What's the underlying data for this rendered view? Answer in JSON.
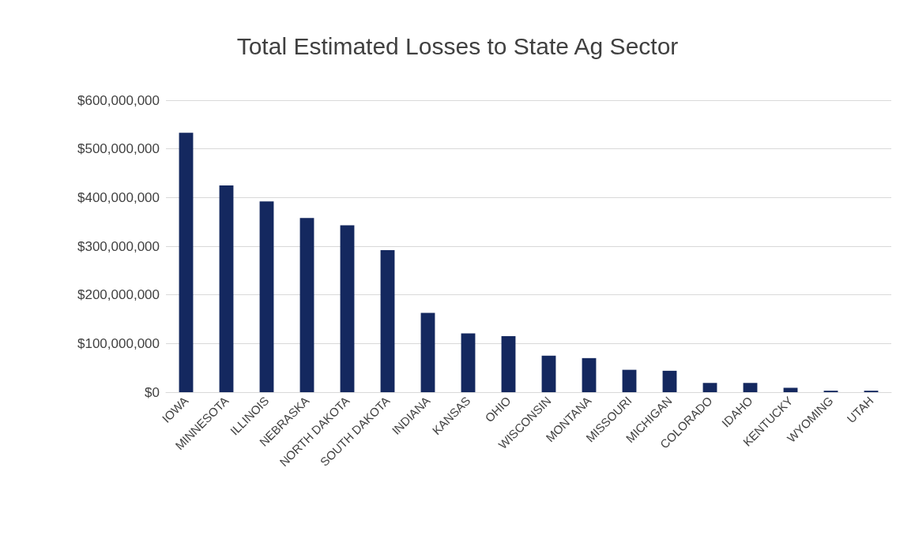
{
  "chart_data": {
    "type": "bar",
    "title": "Total Estimated Losses to State Ag Sector",
    "categories": [
      "IOWA",
      "MINNESOTA",
      "ILLINOIS",
      "NEBRASKA",
      "NORTH DAKOTA",
      "SOUTH DAKOTA",
      "INDIANA",
      "KANSAS",
      "OHIO",
      "WISCONSIN",
      "MONTANA",
      "MISSOURI",
      "MICHIGAN",
      "COLORADO",
      "IDAHO",
      "KENTUCKY",
      "WYOMING",
      "UTAH"
    ],
    "values": [
      533000000,
      425000000,
      392000000,
      358000000,
      343000000,
      292000000,
      163000000,
      121000000,
      115000000,
      75000000,
      70000000,
      46000000,
      44000000,
      19000000,
      19000000,
      9000000,
      3000000,
      3000000
    ],
    "color": "#14285f",
    "ylim": [
      0,
      600000000
    ],
    "yticks": [
      {
        "value": 0,
        "label": "$0"
      },
      {
        "value": 100000000,
        "label": "$100,000,000"
      },
      {
        "value": 200000000,
        "label": "$200,000,000"
      },
      {
        "value": 300000000,
        "label": "$300,000,000"
      },
      {
        "value": 400000000,
        "label": "$400,000,000"
      },
      {
        "value": 500000000,
        "label": "$500,000,000"
      },
      {
        "value": 600000000,
        "label": "$600,000,000"
      }
    ],
    "grid": "y"
  }
}
